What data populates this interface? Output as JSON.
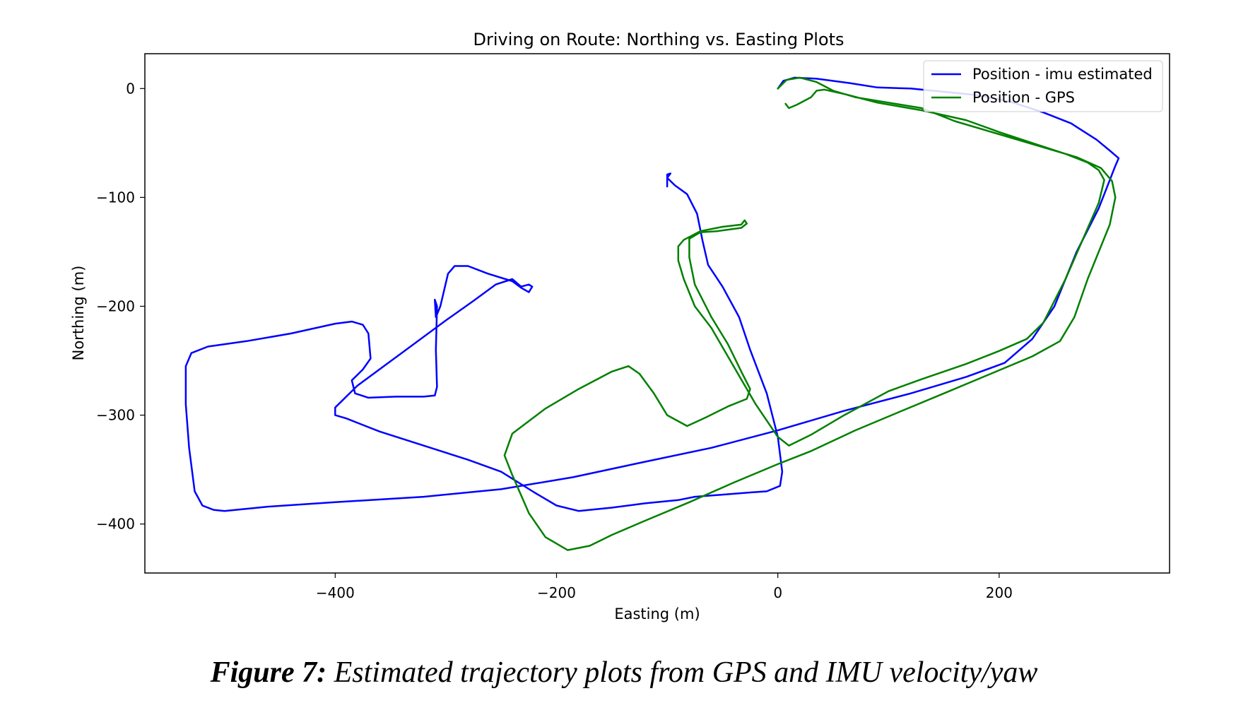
{
  "chart_data": {
    "type": "line",
    "title": "Driving on Route: Northing vs. Easting Plots",
    "xlabel": "Easting (m)",
    "ylabel": "Northing (m)",
    "xlim": [
      -572,
      354
    ],
    "ylim": [
      -445,
      32
    ],
    "xticks": [
      -400,
      -200,
      0,
      200
    ],
    "yticks": [
      0,
      -100,
      -200,
      -300,
      -400
    ],
    "grid": false,
    "legend_position": "top-right",
    "series": [
      {
        "name": "Position - imu estimated",
        "color": "#0000ff",
        "points": [
          [
            0,
            0
          ],
          [
            5,
            7
          ],
          [
            15,
            10
          ],
          [
            35,
            9
          ],
          [
            65,
            5
          ],
          [
            90,
            1
          ],
          [
            120,
            0
          ],
          [
            150,
            -3
          ],
          [
            180,
            -6
          ],
          [
            210,
            -12
          ],
          [
            240,
            -22
          ],
          [
            265,
            -32
          ],
          [
            288,
            -47
          ],
          [
            300,
            -57
          ],
          [
            308,
            -64
          ],
          [
            305,
            -71
          ],
          [
            290,
            -110
          ],
          [
            270,
            -150
          ],
          [
            250,
            -200
          ],
          [
            230,
            -230
          ],
          [
            205,
            -252
          ],
          [
            170,
            -265
          ],
          [
            120,
            -280
          ],
          [
            60,
            -296
          ],
          [
            0,
            -314
          ],
          [
            -60,
            -330
          ],
          [
            -130,
            -345
          ],
          [
            -185,
            -357
          ],
          [
            -250,
            -368
          ],
          [
            -320,
            -375
          ],
          [
            -400,
            -380
          ],
          [
            -460,
            -384
          ],
          [
            -500,
            -388
          ],
          [
            -510,
            -387
          ],
          [
            -520,
            -383
          ],
          [
            -527,
            -370
          ],
          [
            -532,
            -330
          ],
          [
            -535,
            -290
          ],
          [
            -535,
            -255
          ],
          [
            -530,
            -243
          ],
          [
            -515,
            -237
          ],
          [
            -480,
            -232
          ],
          [
            -440,
            -225
          ],
          [
            -400,
            -216
          ],
          [
            -385,
            -214
          ],
          [
            -375,
            -217
          ],
          [
            -370,
            -225
          ],
          [
            -368,
            -248
          ],
          [
            -375,
            -258
          ],
          [
            -385,
            -268
          ],
          [
            -382,
            -280
          ],
          [
            -370,
            -284
          ],
          [
            -345,
            -283
          ],
          [
            -320,
            -283
          ],
          [
            -310,
            -282
          ],
          [
            -308,
            -274
          ],
          [
            -309,
            -240
          ],
          [
            -308,
            -200
          ],
          [
            -310,
            -194
          ],
          [
            -309,
            -210
          ],
          [
            -305,
            -200
          ],
          [
            -298,
            -170
          ],
          [
            -292,
            -163
          ],
          [
            -280,
            -163
          ],
          [
            -262,
            -170
          ],
          [
            -240,
            -177
          ],
          [
            -232,
            -183
          ],
          [
            -225,
            -187
          ],
          [
            -222,
            -182
          ],
          [
            -225,
            -180
          ],
          [
            -232,
            -182
          ],
          [
            -240,
            -175
          ],
          [
            -255,
            -180
          ],
          [
            -275,
            -195
          ],
          [
            -300,
            -213
          ],
          [
            -340,
            -243
          ],
          [
            -380,
            -273
          ],
          [
            -400,
            -293
          ],
          [
            -400,
            -300
          ],
          [
            -390,
            -303
          ],
          [
            -360,
            -315
          ],
          [
            -320,
            -328
          ],
          [
            -280,
            -341
          ],
          [
            -250,
            -352
          ],
          [
            -220,
            -371
          ],
          [
            -200,
            -383
          ],
          [
            -180,
            -388
          ],
          [
            -150,
            -385
          ],
          [
            -120,
            -381
          ],
          [
            -90,
            -378
          ],
          [
            -75,
            -375
          ],
          [
            -50,
            -373
          ],
          [
            -25,
            -371
          ],
          [
            -10,
            -370
          ],
          [
            2,
            -365
          ],
          [
            4,
            -352
          ],
          [
            0,
            -320
          ],
          [
            -10,
            -280
          ],
          [
            -25,
            -240
          ],
          [
            -35,
            -210
          ],
          [
            -50,
            -182
          ],
          [
            -63,
            -162
          ],
          [
            -68,
            -140
          ],
          [
            -73,
            -115
          ],
          [
            -82,
            -97
          ],
          [
            -93,
            -89
          ],
          [
            -100,
            -82
          ],
          [
            -97,
            -78
          ],
          [
            -100,
            -79
          ],
          [
            -100,
            -90
          ]
        ]
      },
      {
        "name": "Position - GPS",
        "color": "#008000",
        "points": [
          [
            7,
            -14
          ],
          [
            10,
            -18
          ],
          [
            17,
            -15
          ],
          [
            30,
            -8
          ],
          [
            35,
            -2
          ],
          [
            42,
            -1
          ],
          [
            60,
            -5
          ],
          [
            90,
            -13
          ],
          [
            130,
            -20
          ],
          [
            170,
            -29
          ],
          [
            200,
            -40
          ],
          [
            230,
            -50
          ],
          [
            260,
            -60
          ],
          [
            280,
            -68
          ],
          [
            290,
            -75
          ],
          [
            295,
            -84
          ],
          [
            290,
            -105
          ],
          [
            275,
            -140
          ],
          [
            260,
            -175
          ],
          [
            250,
            -195
          ],
          [
            240,
            -215
          ],
          [
            225,
            -230
          ],
          [
            200,
            -241
          ],
          [
            170,
            -253
          ],
          [
            130,
            -267
          ],
          [
            100,
            -278
          ],
          [
            60,
            -300
          ],
          [
            30,
            -318
          ],
          [
            10,
            -328
          ],
          [
            0,
            -320
          ],
          [
            -20,
            -290
          ],
          [
            -40,
            -255
          ],
          [
            -60,
            -220
          ],
          [
            -75,
            -200
          ],
          [
            -85,
            -175
          ],
          [
            -90,
            -158
          ],
          [
            -90,
            -145
          ],
          [
            -85,
            -139
          ],
          [
            -70,
            -131
          ],
          [
            -50,
            -127
          ],
          [
            -33,
            -125
          ],
          [
            -30,
            -121
          ],
          [
            -28,
            -124
          ],
          [
            -33,
            -128
          ],
          [
            -55,
            -131
          ],
          [
            -70,
            -132
          ],
          [
            -80,
            -138
          ],
          [
            -80,
            -155
          ],
          [
            -75,
            -180
          ],
          [
            -60,
            -210
          ],
          [
            -45,
            -235
          ],
          [
            -33,
            -260
          ],
          [
            -25,
            -276
          ],
          [
            -28,
            -285
          ],
          [
            -45,
            -292
          ],
          [
            -65,
            -302
          ],
          [
            -82,
            -310
          ],
          [
            -100,
            -300
          ],
          [
            -112,
            -280
          ],
          [
            -125,
            -262
          ],
          [
            -135,
            -255
          ],
          [
            -150,
            -260
          ],
          [
            -180,
            -276
          ],
          [
            -210,
            -294
          ],
          [
            -240,
            -317
          ],
          [
            -247,
            -337
          ],
          [
            -240,
            -355
          ],
          [
            -225,
            -390
          ],
          [
            -210,
            -412
          ],
          [
            -190,
            -424
          ],
          [
            -170,
            -420
          ],
          [
            -150,
            -410
          ],
          [
            -120,
            -397
          ],
          [
            -80,
            -380
          ],
          [
            -40,
            -362
          ],
          [
            0,
            -345
          ],
          [
            30,
            -333
          ],
          [
            70,
            -314
          ],
          [
            110,
            -297
          ],
          [
            150,
            -280
          ],
          [
            190,
            -263
          ],
          [
            230,
            -246
          ],
          [
            255,
            -232
          ],
          [
            268,
            -210
          ],
          [
            280,
            -175
          ],
          [
            300,
            -125
          ],
          [
            305,
            -100
          ],
          [
            302,
            -85
          ],
          [
            292,
            -73
          ],
          [
            270,
            -63
          ],
          [
            240,
            -54
          ],
          [
            200,
            -42
          ],
          [
            160,
            -30
          ],
          [
            130,
            -18
          ],
          [
            100,
            -13
          ],
          [
            70,
            -8
          ],
          [
            50,
            -2
          ],
          [
            35,
            6
          ],
          [
            20,
            10
          ],
          [
            8,
            8
          ],
          [
            0,
            0
          ]
        ]
      }
    ]
  },
  "caption": {
    "label": "Figure 7:",
    "text": "Estimated trajectory plots from GPS and IMU velocity/yaw"
  }
}
